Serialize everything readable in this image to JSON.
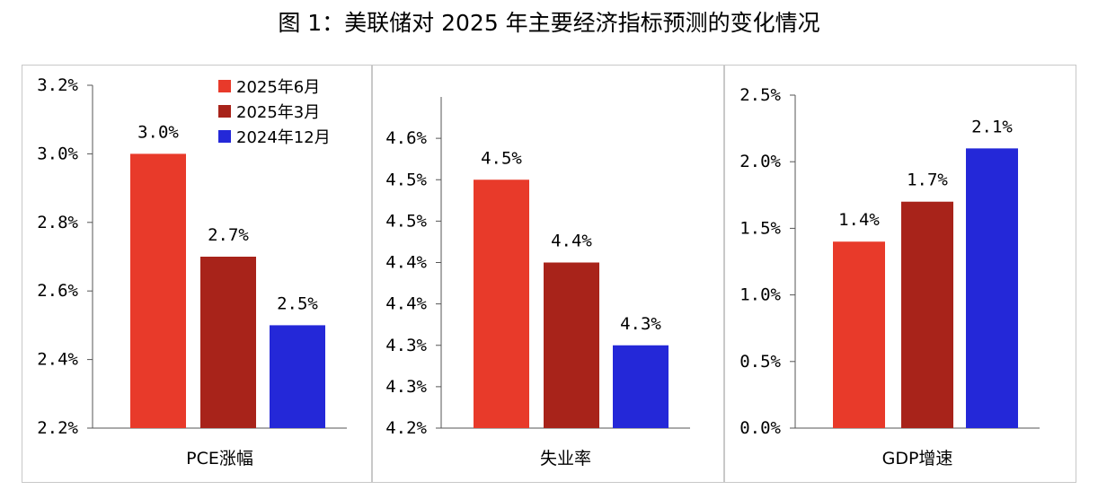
{
  "title": "图 1：美联储对 2025 年主要经济指标预测的变化情况",
  "colors": {
    "jun2025": "#e83a2a",
    "mar2025": "#a8231a",
    "dec2024": "#2428d8"
  },
  "chart_data": [
    {
      "type": "bar",
      "xlabel": "PCE涨幅",
      "ylim": [
        2.2,
        3.2
      ],
      "yticks": [
        2.2,
        2.4,
        2.6,
        2.8,
        3.0,
        3.2
      ],
      "ytick_labels": [
        "2.2%",
        "2.4%",
        "2.6%",
        "2.8%",
        "3.0%",
        "3.2%"
      ],
      "series": [
        {
          "name": "2025年6月",
          "values": [
            3.0
          ],
          "label": "3.0%"
        },
        {
          "name": "2025年3月",
          "values": [
            2.7
          ],
          "label": "2.7%"
        },
        {
          "name": "2024年12月",
          "values": [
            2.5
          ],
          "label": "2.5%"
        }
      ],
      "legend": "top-right"
    },
    {
      "type": "bar",
      "xlabel": "失业率",
      "ylim": [
        4.2,
        4.6
      ],
      "yticks": [
        4.2,
        4.25,
        4.3,
        4.35,
        4.4,
        4.45,
        4.5,
        4.55
      ],
      "ytick_labels": [
        "4.2%",
        "4.3%",
        "4.3%",
        "4.4%",
        "4.4%",
        "4.5%",
        "4.5%",
        "4.6%"
      ],
      "series": [
        {
          "name": "2025年6月",
          "values": [
            4.5
          ],
          "label": "4.5%"
        },
        {
          "name": "2025年3月",
          "values": [
            4.4
          ],
          "label": "4.4%"
        },
        {
          "name": "2024年12月",
          "values": [
            4.3
          ],
          "label": "4.3%"
        }
      ]
    },
    {
      "type": "bar",
      "xlabel": "GDP增速",
      "ylim": [
        0.0,
        2.5
      ],
      "yticks": [
        0.0,
        0.5,
        1.0,
        1.5,
        2.0,
        2.5
      ],
      "ytick_labels": [
        "0.0%",
        "0.5%",
        "1.0%",
        "1.5%",
        "2.0%",
        "2.5%"
      ],
      "series": [
        {
          "name": "2025年6月",
          "values": [
            1.4
          ],
          "label": "1.4%"
        },
        {
          "name": "2025年3月",
          "values": [
            1.7
          ],
          "label": "1.7%"
        },
        {
          "name": "2024年12月",
          "values": [
            2.1
          ],
          "label": "2.1%"
        }
      ]
    }
  ]
}
